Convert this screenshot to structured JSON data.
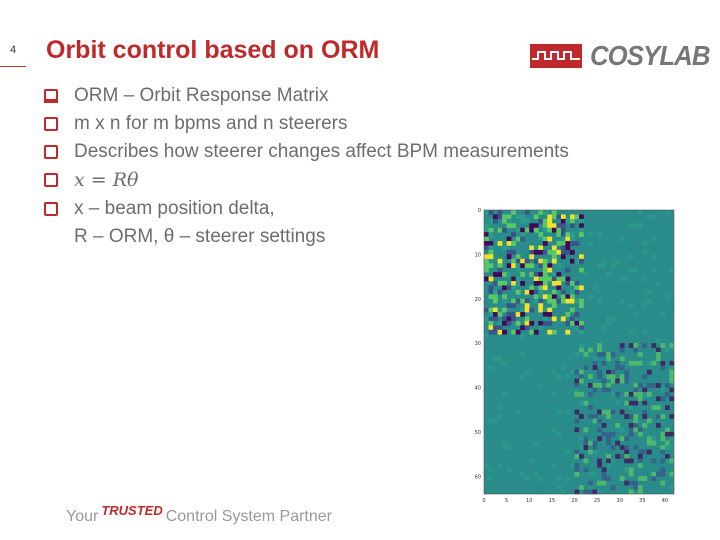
{
  "slide": {
    "number": "4",
    "title": "Orbit control based on ORM"
  },
  "logo": {
    "text": "COSYLAB"
  },
  "bullets": [
    {
      "text": "ORM – Orbit Response Matrix"
    },
    {
      "text": "m x n for m bpms and n steerers"
    },
    {
      "text": "Describes how steerer changes affect BPM measurements"
    },
    {
      "math": "x = Rθ"
    },
    {
      "line1": "x – beam position delta,",
      "line2": "R – ORM, θ – steerer settings"
    }
  ],
  "chart_data": {
    "type": "heatmap",
    "ylabel": "",
    "xlabel": "",
    "y_ticks": [
      "0",
      "10",
      "20",
      "30",
      "40",
      "50",
      "60"
    ],
    "x_ticks": [
      "0",
      "5",
      "10",
      "15",
      "20",
      "25",
      "30",
      "35",
      "40"
    ],
    "colormap": "viridis"
  },
  "footer": {
    "your": "Your",
    "trusted": "TRUSTED",
    "rest": "Control System Partner"
  },
  "colors": {
    "accent": "#c0292b",
    "text": "#6d6d6d"
  }
}
